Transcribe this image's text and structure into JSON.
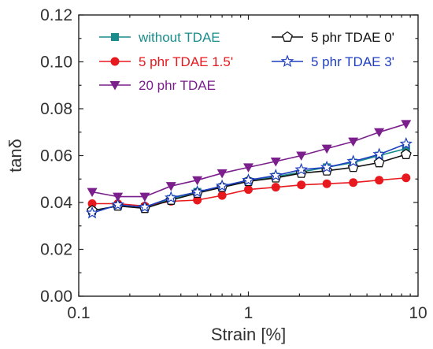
{
  "chart_data": {
    "type": "line",
    "xlabel": "Strain [%]",
    "ylabel": "tanδ",
    "xscale": "log",
    "xlim": [
      0.1,
      10
    ],
    "ylim": [
      0.0,
      0.12
    ],
    "xticks": [
      "0.1",
      "1",
      "10"
    ],
    "yticks": [
      "0.00",
      "0.02",
      "0.04",
      "0.06",
      "0.08",
      "0.10",
      "0.12"
    ],
    "grid": false,
    "legend_position": "top",
    "x": [
      0.12,
      0.17,
      0.245,
      0.35,
      0.5,
      0.7,
      1.0,
      1.45,
      2.05,
      2.9,
      4.15,
      5.9,
      8.5
    ],
    "series": [
      {
        "name": "without TDAE",
        "color": "#1a8c8c",
        "marker": "square",
        "values": [
          0.0365,
          0.0385,
          0.038,
          0.0415,
          0.0445,
          0.0465,
          0.049,
          0.051,
          0.053,
          0.055,
          0.057,
          0.06,
          0.063
        ]
      },
      {
        "name": "5 phr TDAE 1.5'",
        "color": "#e8191e",
        "marker": "circle",
        "values": [
          0.0395,
          0.0395,
          0.0385,
          0.0405,
          0.041,
          0.043,
          0.0455,
          0.0465,
          0.0475,
          0.048,
          0.0485,
          0.0495,
          0.0505
        ]
      },
      {
        "name": "20 phr TDAE",
        "color": "#7b1f8c",
        "marker": "triangle-down",
        "values": [
          0.0445,
          0.0425,
          0.0425,
          0.047,
          0.0495,
          0.0525,
          0.055,
          0.0575,
          0.06,
          0.063,
          0.066,
          0.07,
          0.0735
        ]
      },
      {
        "name": "5 phr TDAE 0'",
        "color": "#111111",
        "marker": "pentagon-open",
        "values": [
          0.0365,
          0.0385,
          0.0375,
          0.041,
          0.044,
          0.0465,
          0.049,
          0.0505,
          0.0525,
          0.0535,
          0.055,
          0.057,
          0.0605
        ]
      },
      {
        "name": "5 phr TDAE 3'",
        "color": "#1f3fbf",
        "marker": "star-open",
        "values": [
          0.0355,
          0.039,
          0.038,
          0.042,
          0.0445,
          0.047,
          0.0495,
          0.0515,
          0.054,
          0.055,
          0.0575,
          0.0605,
          0.065
        ]
      }
    ]
  }
}
